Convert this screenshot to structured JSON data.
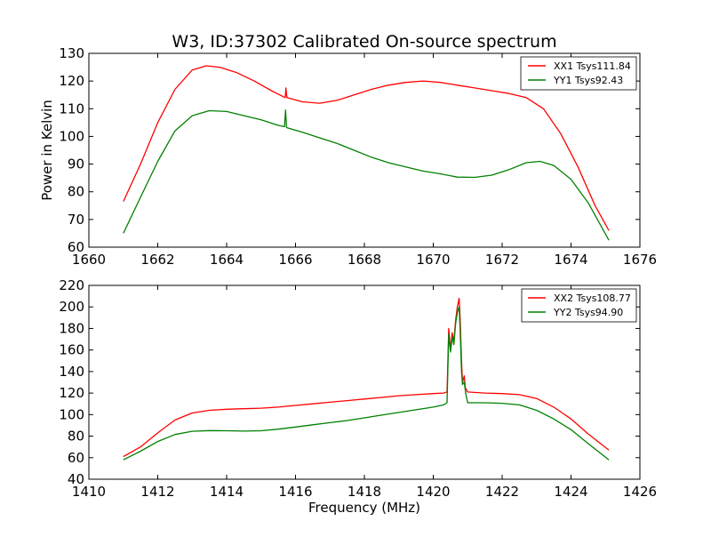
{
  "chart_data": [
    {
      "type": "line",
      "title": "W3, ID:37302 Calibrated On-source spectrum",
      "xlabel": "",
      "ylabel": "Power in Kelvin",
      "xlim": [
        1660,
        1676
      ],
      "ylim": [
        60,
        130
      ],
      "xticks": [
        "1660",
        "1662",
        "1664",
        "1666",
        "1668",
        "1670",
        "1672",
        "1674",
        "1676"
      ],
      "yticks": [
        "60",
        "70",
        "80",
        "90",
        "100",
        "110",
        "120",
        "130"
      ],
      "grid": false,
      "legend": "top-right",
      "series": [
        {
          "name": "XX1 Tsys111.84",
          "color": "#ff0000",
          "points": [
            [
              1661,
              76.5
            ],
            [
              1661.5,
              90
            ],
            [
              1662,
              105
            ],
            [
              1662.5,
              117
            ],
            [
              1663,
              124
            ],
            [
              1663.4,
              125.5
            ],
            [
              1663.8,
              125
            ],
            [
              1664.3,
              123
            ],
            [
              1664.8,
              120
            ],
            [
              1665.3,
              116.5
            ],
            [
              1665.7,
              114
            ],
            [
              1665.72,
              117.5
            ],
            [
              1665.75,
              114
            ],
            [
              1666.2,
              112.5
            ],
            [
              1666.7,
              112
            ],
            [
              1667.2,
              113
            ],
            [
              1667.7,
              115
            ],
            [
              1668.2,
              117
            ],
            [
              1668.7,
              118.5
            ],
            [
              1669.2,
              119.5
            ],
            [
              1669.7,
              120
            ],
            [
              1670.2,
              119.5
            ],
            [
              1670.7,
              118.5
            ],
            [
              1671.2,
              117.5
            ],
            [
              1671.7,
              116.5
            ],
            [
              1672.2,
              115.5
            ],
            [
              1672.7,
              114
            ],
            [
              1673.2,
              110
            ],
            [
              1673.7,
              101
            ],
            [
              1674.2,
              89
            ],
            [
              1674.7,
              75
            ],
            [
              1675.1,
              66
            ]
          ]
        },
        {
          "name": "YY1 Tsys92.43",
          "color": "#008000",
          "points": [
            [
              1661,
              65
            ],
            [
              1661.5,
              78
            ],
            [
              1662,
              91
            ],
            [
              1662.5,
              102
            ],
            [
              1663,
              107.5
            ],
            [
              1663.5,
              109.3
            ],
            [
              1664,
              109
            ],
            [
              1664.5,
              107.5
            ],
            [
              1665,
              106
            ],
            [
              1665.5,
              104
            ],
            [
              1665.68,
              103.5
            ],
            [
              1665.71,
              109.5
            ],
            [
              1665.74,
              103.2
            ],
            [
              1666.2,
              101.5
            ],
            [
              1666.7,
              99.5
            ],
            [
              1667.2,
              97.5
            ],
            [
              1667.7,
              95
            ],
            [
              1668.2,
              92.5
            ],
            [
              1668.7,
              90.5
            ],
            [
              1669.2,
              89
            ],
            [
              1669.7,
              87.5
            ],
            [
              1670.2,
              86.5
            ],
            [
              1670.7,
              85.3
            ],
            [
              1671.2,
              85.2
            ],
            [
              1671.7,
              86
            ],
            [
              1672.2,
              88
            ],
            [
              1672.7,
              90.5
            ],
            [
              1673.1,
              91
            ],
            [
              1673.5,
              89.5
            ],
            [
              1674,
              84.5
            ],
            [
              1674.5,
              76
            ],
            [
              1675.1,
              62.5
            ]
          ]
        }
      ]
    },
    {
      "type": "line",
      "title": "",
      "xlabel": "Frequency (MHz)",
      "ylabel": "",
      "xlim": [
        1410,
        1426
      ],
      "ylim": [
        40,
        220
      ],
      "xticks": [
        "1410",
        "1412",
        "1414",
        "1416",
        "1418",
        "1420",
        "1422",
        "1424",
        "1426"
      ],
      "yticks": [
        "40",
        "60",
        "80",
        "100",
        "120",
        "140",
        "160",
        "180",
        "200",
        "220"
      ],
      "grid": false,
      "legend": "top-right",
      "series": [
        {
          "name": "XX2 Tsys108.77",
          "color": "#ff0000",
          "points": [
            [
              1411,
              61
            ],
            [
              1411.5,
              70
            ],
            [
              1412,
              83
            ],
            [
              1412.5,
              95
            ],
            [
              1413,
              101.5
            ],
            [
              1413.5,
              104
            ],
            [
              1414,
              105
            ],
            [
              1414.5,
              105.5
            ],
            [
              1415,
              106
            ],
            [
              1415.5,
              107
            ],
            [
              1416,
              108.5
            ],
            [
              1416.5,
              110
            ],
            [
              1417,
              111.5
            ],
            [
              1417.5,
              113
            ],
            [
              1418,
              114.5
            ],
            [
              1418.5,
              116
            ],
            [
              1419,
              117.5
            ],
            [
              1419.5,
              118.5
            ],
            [
              1420,
              119.5
            ],
            [
              1420.3,
              120
            ],
            [
              1420.4,
              121
            ],
            [
              1420.45,
              180
            ],
            [
              1420.5,
              160
            ],
            [
              1420.55,
              176
            ],
            [
              1420.6,
              168
            ],
            [
              1420.65,
              188
            ],
            [
              1420.7,
              200
            ],
            [
              1420.75,
              208
            ],
            [
              1420.78,
              190
            ],
            [
              1420.82,
              150
            ],
            [
              1420.85,
              130
            ],
            [
              1420.9,
              136
            ],
            [
              1420.93,
              125
            ],
            [
              1421,
              121
            ],
            [
              1421.5,
              120
            ],
            [
              1422,
              119.5
            ],
            [
              1422.5,
              118.5
            ],
            [
              1423,
              115
            ],
            [
              1423.5,
              107
            ],
            [
              1424,
              96
            ],
            [
              1424.5,
              82
            ],
            [
              1425.1,
              67
            ]
          ]
        },
        {
          "name": "YY2 Tsys94.90",
          "color": "#008000",
          "points": [
            [
              1411,
              58
            ],
            [
              1411.5,
              66
            ],
            [
              1412,
              75
            ],
            [
              1412.5,
              81.5
            ],
            [
              1413,
              84.5
            ],
            [
              1413.5,
              85.2
            ],
            [
              1414,
              85
            ],
            [
              1414.5,
              84.7
            ],
            [
              1415,
              85
            ],
            [
              1415.5,
              86.5
            ],
            [
              1416,
              88.5
            ],
            [
              1416.5,
              90.5
            ],
            [
              1417,
              92.5
            ],
            [
              1417.5,
              94.5
            ],
            [
              1418,
              97
            ],
            [
              1418.5,
              99.5
            ],
            [
              1419,
              102
            ],
            [
              1419.5,
              104.5
            ],
            [
              1420,
              107
            ],
            [
              1420.3,
              109
            ],
            [
              1420.4,
              111
            ],
            [
              1420.45,
              175
            ],
            [
              1420.5,
              158
            ],
            [
              1420.55,
              172
            ],
            [
              1420.6,
              165
            ],
            [
              1420.65,
              185
            ],
            [
              1420.7,
              195
            ],
            [
              1420.75,
              200
            ],
            [
              1420.78,
              180
            ],
            [
              1420.82,
              140
            ],
            [
              1420.85,
              128
            ],
            [
              1420.9,
              130
            ],
            [
              1420.95,
              118
            ],
            [
              1421,
              111
            ],
            [
              1421.5,
              111
            ],
            [
              1422,
              110.5
            ],
            [
              1422.5,
              109
            ],
            [
              1423,
              104
            ],
            [
              1423.5,
              96
            ],
            [
              1424,
              86
            ],
            [
              1424.5,
              73
            ],
            [
              1425.1,
              58
            ]
          ]
        }
      ]
    }
  ]
}
